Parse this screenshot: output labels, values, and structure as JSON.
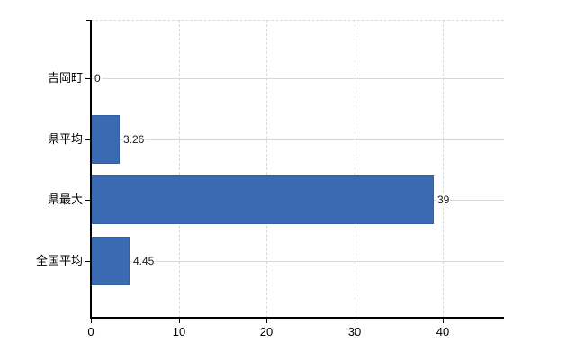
{
  "chart_data": {
    "type": "bar",
    "orientation": "horizontal",
    "title": "",
    "xlabel": "",
    "ylabel": "",
    "categories": [
      "吉岡町",
      "県平均",
      "県最大",
      "全国平均"
    ],
    "values": [
      0,
      3.26,
      39,
      4.45
    ],
    "value_labels": [
      "0",
      "3.26",
      "39",
      "4.45"
    ],
    "x_ticks": [
      0,
      10,
      20,
      30,
      40
    ],
    "xlim": [
      0,
      47
    ],
    "grid": true,
    "legend": "none",
    "bar_color": "#3a6bb2",
    "bar_border_color": "#32619f",
    "gridline_color": "#d9d9d9",
    "axis_color": "#000000",
    "background_color": "#ffffff"
  }
}
